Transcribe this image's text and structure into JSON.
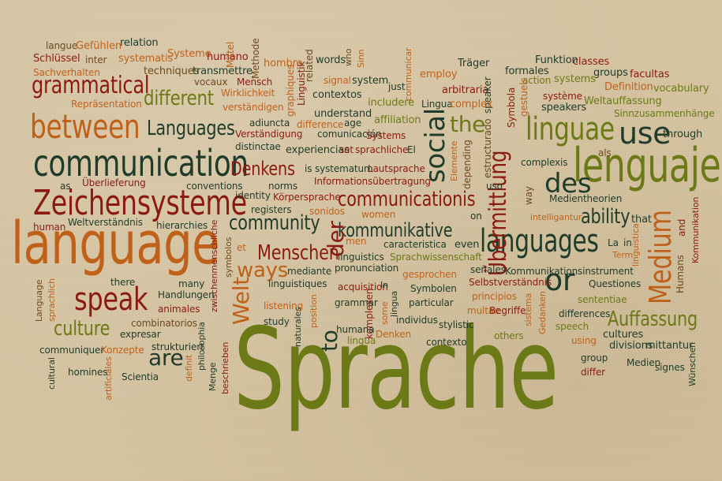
{
  "palette": {
    "background": "#d6c5a3",
    "red": "#8b1a12",
    "orange": "#c0611a",
    "olive": "#6b7a16",
    "dark": "#1f3b2a",
    "brown": "#6e4a1f",
    "gold": "#b08a25"
  },
  "cloud": {
    "w001": "Sprache",
    "w002": "language",
    "w003": "lenguaje",
    "w004": "communication",
    "w005": "Zeichensysteme",
    "w006": "between",
    "w007": "grammatical",
    "w008": "linguae",
    "w009": "use",
    "w010": "languages",
    "w011": "speak",
    "w012": "Medium",
    "w013": "social",
    "w014": "Übermittlung",
    "w015": "Languages",
    "w016": "different",
    "w017": "communicationis",
    "w018": "community",
    "w019": "Menschen",
    "w020": "kommunikative",
    "w021": "Denkens",
    "w022": "culture",
    "w023": "Auffassung",
    "w024": "ability",
    "w025": "ways",
    "w026": "des",
    "w027": "or",
    "w028": "the",
    "w029": "are",
    "w030": "der",
    "w031": "Welt",
    "w032": "to",
    "w033": "langue",
    "w034": "Gefühlen",
    "w035": "relation",
    "w036": "Schlüssel",
    "w037": "inter",
    "w038": "systematis",
    "w039": "Systeme",
    "w040": "humano",
    "w041": "Mittel",
    "w042": "Methode",
    "w043": "hombre",
    "w044": "related",
    "w045": "words",
    "w046": "who",
    "w047": "Sinn",
    "w048": "Sachverhalten",
    "w049": "techniques",
    "w050": "transmettre",
    "w051": "vocaux",
    "w052": "Mensch",
    "w053": "Wirklichkeit",
    "w054": "Linguistik",
    "w055": "signal",
    "w056": "system",
    "w057": "just",
    "w058": "communicar",
    "w059": "employ",
    "w060": "Träger",
    "w061": "Funktion",
    "w062": "classes",
    "w063": "formales",
    "w064": "groups",
    "w065": "facultas",
    "w066": "Repräsentation",
    "w067": "verständigen",
    "w068": "graphiques",
    "w069": "contextos",
    "w070": "includere",
    "w071": "arbitraria",
    "w072": "speaker",
    "w073": "action",
    "w074": "systems",
    "w075": "Definition",
    "w076": "vocabulary",
    "w077": "adiuncta",
    "w078": "understand",
    "w079": "affiliation",
    "w080": "Lingua",
    "w081": "complex",
    "w082": "Symbola",
    "w083": "gestuels",
    "w084": "système",
    "w085": "Weltauffassung",
    "w086": "Sinnzusammenhänge",
    "w087": "Verständigung",
    "w088": "comunicación",
    "w089": "age",
    "w090": "difference",
    "w091": "Systems",
    "w092": "speakers",
    "w093": "distinctae",
    "w094": "experiencias",
    "w095": "set",
    "w096": "sprachliche",
    "w097": "El",
    "w098": "estructurado",
    "w099": "through",
    "w100": "als",
    "w101": "as",
    "w102": "Überlieferung",
    "w103": "is systematum",
    "w104": "Lautsprache",
    "w105": "Elemente",
    "w106": "depending",
    "w107": "complexis",
    "w108": "conventions",
    "w109": "norms",
    "w110": "Informationsübertragung",
    "w111": "uso",
    "w112": "way",
    "w113": "Medientheorien",
    "w114": "identity",
    "w115": "Körpersprache",
    "w116": "registers",
    "w117": "sonidos",
    "w118": "women",
    "w119": "intelligantur",
    "w120": "Kommunikation",
    "w121": "and",
    "w122": "Humans",
    "w123": "human",
    "w124": "Weltverständnis",
    "w125": "hierarchies",
    "w126": "zwischenmenschliche",
    "w127": "symbolos",
    "w128": "men",
    "w129": "even",
    "w130": "on",
    "w131": "that",
    "w132": "La",
    "w133": "in",
    "w134": "Term",
    "w135": "linguistica",
    "w136": "caracteristica",
    "w137": "Sprachwissenschaft",
    "w138": "linguistics",
    "w139": "et",
    "w140": "mediante",
    "w141": "pronunciation",
    "w142": "gesprochen",
    "w143": "señales",
    "w144": "Kommunikationsinstrument",
    "w145": "linguistiques",
    "w146": "acquisition",
    "w147": "In",
    "w148": "Symbolen",
    "w149": "Selbstverständnis",
    "w150": "Questiones",
    "w151": "there",
    "w152": "many",
    "w153": "Handlungen",
    "w154": "animales",
    "w155": "sententiae",
    "w156": "Language",
    "w157": "sprachlich",
    "w158": "combinatorios",
    "w159": "listening",
    "w160": "grammar",
    "w161": "komplexen",
    "w162": "lingua",
    "w163": "particular",
    "w164": "principios",
    "w165": "study",
    "w166": "position",
    "w167": "multae",
    "w168": "Begriffe",
    "w169": "expresar",
    "w170": "naturales",
    "w171": "some",
    "w172": "individus",
    "w173": "stylistic",
    "w174": "sistema",
    "w175": "Gedanken",
    "w176": "differences",
    "w177": "speech",
    "w178": "communiquer",
    "w179": "Konzepte",
    "w180": "strukturiert",
    "w181": "philosophia",
    "w182": "definit",
    "w183": "Menge",
    "w184": "beschrieben",
    "w185": "humana",
    "w186": "Denken",
    "w187": "contexto",
    "w188": "others",
    "w189": "cultures",
    "w190": "divisions",
    "w191": "mittantur",
    "w192": "using",
    "w193": "group",
    "w194": "differ",
    "w195": "Medien",
    "w196": "signes",
    "w197": "Wünschen",
    "w198": "cultural",
    "w199": "homines",
    "w200": "artificiales",
    "w201": "Scientia"
  }
}
